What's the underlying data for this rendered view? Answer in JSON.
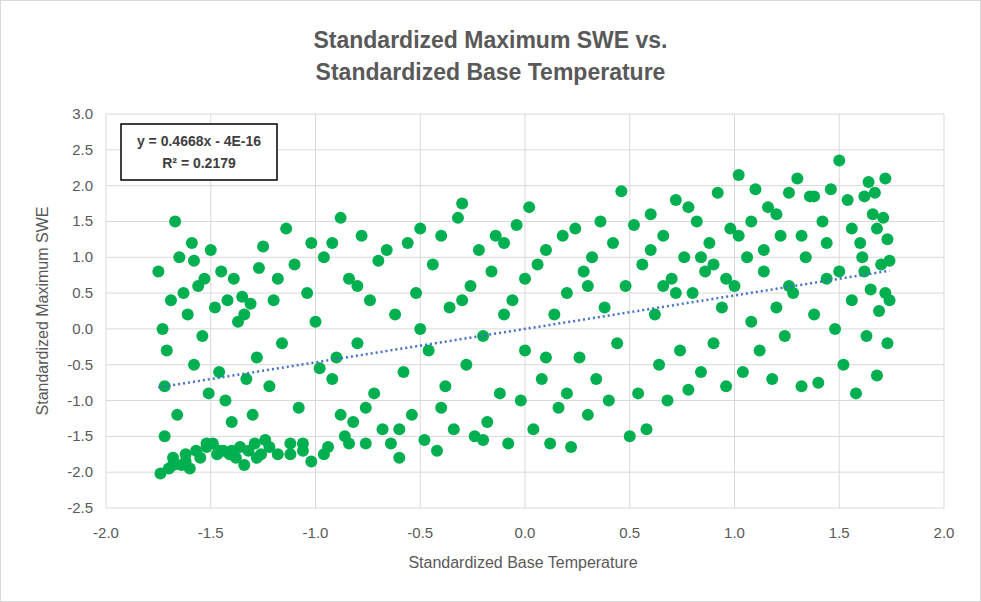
{
  "chart_data": {
    "type": "scatter",
    "title": "Standardized Maximum SWE vs. Standardized Base Temperature",
    "x_label": "Standardized Base Temperature",
    "y_label": "Standardized Maximum SWE",
    "annotations": [
      "y = 0.4668x - 4E-16",
      "R² = 0.2179"
    ],
    "trendline": {
      "slope": 0.4668,
      "intercept": -4e-16,
      "color": "#4472c4",
      "line_style": "dotted"
    },
    "color": "#00b050",
    "marker": "circle",
    "grid": true,
    "xlim": [
      -2,
      2
    ],
    "xticks": [
      {
        "value": -2,
        "label": "-2.0"
      },
      -1.5,
      {
        "value": -1,
        "label": "-1.0"
      },
      -0.5,
      {
        "value": 0,
        "label": "0.0"
      },
      0.5,
      {
        "value": 1,
        "label": "1.0"
      },
      1.5,
      {
        "value": 2,
        "label": "2.0"
      }
    ],
    "ylim": [
      -2.5,
      3
    ],
    "yticks": [
      -2.5,
      {
        "value": -2,
        "label": "-2.0"
      },
      -1.5,
      {
        "value": -1,
        "label": "-1.0"
      },
      -0.5,
      {
        "value": 0,
        "label": "0.0"
      },
      0.5,
      {
        "value": 1,
        "label": "1.0"
      },
      1.5,
      {
        "value": 2,
        "label": "2.0"
      },
      2.5,
      {
        "value": 3,
        "label": "3.0"
      }
    ],
    "x": [
      -1.75,
      -1.74,
      -1.73,
      -1.72,
      -1.71,
      -1.7,
      -1.69,
      -1.68,
      -1.67,
      -1.66,
      -1.65,
      -1.64,
      -1.63,
      -1.62,
      -1.61,
      -1.6,
      -1.59,
      -1.58,
      -1.57,
      -1.56,
      -1.55,
      -1.54,
      -1.53,
      -1.52,
      -1.51,
      -1.5,
      -1.49,
      -1.48,
      -1.47,
      -1.46,
      -1.45,
      -1.44,
      -1.43,
      -1.42,
      -1.41,
      -1.4,
      -1.39,
      -1.38,
      -1.37,
      -1.36,
      -1.35,
      -1.34,
      -1.33,
      -1.32,
      -1.31,
      -1.3,
      -1.29,
      -1.28,
      -1.27,
      -1.26,
      -1.25,
      -1.24,
      -1.22,
      -1.2,
      -1.18,
      -1.16,
      -1.14,
      -1.12,
      -1.1,
      -1.08,
      -1.06,
      -1.04,
      -1.02,
      -1.0,
      -0.98,
      -0.96,
      -0.94,
      -0.92,
      -0.9,
      -0.88,
      -0.86,
      -0.84,
      -0.82,
      -0.8,
      -0.78,
      -0.76,
      -0.74,
      -0.72,
      -0.7,
      -0.68,
      -0.66,
      -0.64,
      -0.62,
      -0.6,
      -0.58,
      -0.56,
      -0.54,
      -0.52,
      -0.5,
      -0.48,
      -0.46,
      -0.44,
      -0.42,
      -0.4,
      -0.38,
      -0.36,
      -0.34,
      -0.32,
      -0.3,
      -0.28,
      -0.26,
      -0.24,
      -0.22,
      -0.2,
      -0.18,
      -0.16,
      -0.14,
      -0.12,
      -0.1,
      -0.08,
      -0.06,
      -0.04,
      -0.02,
      0.0,
      0.02,
      0.04,
      0.06,
      0.08,
      0.1,
      0.12,
      0.14,
      0.16,
      0.18,
      0.2,
      0.22,
      0.24,
      0.26,
      0.28,
      0.3,
      0.32,
      0.34,
      0.36,
      0.38,
      0.4,
      0.42,
      0.44,
      0.46,
      0.48,
      0.5,
      0.52,
      0.54,
      0.56,
      0.58,
      0.6,
      0.62,
      0.64,
      0.66,
      0.68,
      0.7,
      0.72,
      0.74,
      0.76,
      0.78,
      0.8,
      0.82,
      0.84,
      0.86,
      0.88,
      0.9,
      0.92,
      0.94,
      0.96,
      0.98,
      1.0,
      1.02,
      1.04,
      1.06,
      1.08,
      1.1,
      1.12,
      1.14,
      1.16,
      1.18,
      1.2,
      1.22,
      1.24,
      1.26,
      1.28,
      1.3,
      1.32,
      1.34,
      1.36,
      1.38,
      1.4,
      1.42,
      1.44,
      1.46,
      1.48,
      1.5,
      1.52,
      1.54,
      1.56,
      1.58,
      1.6,
      1.62,
      1.64,
      1.66,
      1.68,
      1.7,
      1.72,
      1.73,
      1.74,
      1.74,
      1.73,
      1.71,
      1.69,
      1.67,
      1.65,
      1.63,
      1.61,
      -1.72,
      -1.68,
      -1.62,
      -1.58,
      -1.52,
      -1.46,
      -1.4,
      -1.34,
      -1.28,
      -1.22,
      -1.18,
      -1.12,
      -1.06,
      -1.02,
      -0.96,
      -0.92,
      -0.88,
      -0.84,
      -0.8,
      -0.76,
      0.6,
      0.66,
      0.72,
      0.78,
      0.84,
      0.9,
      0.96,
      1.02,
      1.08,
      1.14,
      1.2,
      1.26,
      1.32,
      1.38,
      1.44,
      1.5,
      1.56,
      1.62,
      1.68,
      1.72,
      -0.6,
      -0.5,
      -0.4,
      -0.3,
      -0.2,
      -0.1,
      0.0,
      0.1,
      0.2,
      0.3
    ],
    "values": [
      0.8,
      -2.02,
      0.0,
      -1.5,
      -0.3,
      -1.95,
      0.4,
      -1.8,
      1.5,
      -1.2,
      1.0,
      -1.9,
      0.5,
      -1.85,
      0.2,
      -1.95,
      1.2,
      -0.5,
      -1.7,
      0.6,
      -1.8,
      -0.1,
      0.7,
      -1.65,
      -0.9,
      1.1,
      -1.6,
      0.3,
      -1.75,
      -0.6,
      0.8,
      -1.7,
      -1.0,
      0.4,
      -1.75,
      -1.3,
      0.7,
      -1.8,
      0.1,
      -1.65,
      0.45,
      -1.9,
      -0.7,
      -1.7,
      0.35,
      -1.2,
      -1.6,
      -0.4,
      0.85,
      -1.75,
      1.15,
      -1.55,
      -0.8,
      0.4,
      -1.75,
      -0.2,
      1.4,
      -1.6,
      0.9,
      -1.1,
      -1.7,
      0.5,
      -1.85,
      0.1,
      -0.55,
      1.0,
      -1.65,
      1.2,
      -0.4,
      1.55,
      -1.5,
      0.7,
      -1.3,
      -0.2,
      1.3,
      -1.6,
      0.4,
      -0.9,
      0.95,
      -1.4,
      1.1,
      -1.6,
      0.2,
      -1.8,
      -0.6,
      1.2,
      -1.2,
      0.5,
      1.4,
      -1.55,
      -0.3,
      0.9,
      -1.7,
      1.3,
      -0.8,
      0.3,
      -1.4,
      1.55,
      1.75,
      -0.5,
      0.6,
      -1.5,
      1.1,
      -0.1,
      -1.3,
      0.8,
      1.3,
      -0.9,
      0.2,
      -1.6,
      0.4,
      1.45,
      -1.0,
      -0.3,
      1.7,
      -1.4,
      0.9,
      -0.7,
      1.1,
      -1.6,
      0.2,
      -1.1,
      1.3,
      0.5,
      -1.65,
      1.4,
      -0.4,
      0.8,
      -1.2,
      1.0,
      -0.7,
      1.5,
      0.3,
      -1.0,
      1.2,
      -0.2,
      1.92,
      0.6,
      -1.5,
      1.45,
      -0.9,
      0.9,
      -1.4,
      1.6,
      0.2,
      -0.5,
      1.3,
      -1.0,
      0.7,
      1.8,
      -0.3,
      1.0,
      -0.85,
      0.5,
      1.5,
      -0.6,
      0.8,
      1.2,
      -0.2,
      1.9,
      0.3,
      -0.8,
      1.4,
      0.6,
      2.15,
      -0.6,
      1.0,
      0.1,
      1.95,
      -0.3,
      0.8,
      1.7,
      -0.7,
      0.3,
      1.3,
      -0.1,
      1.9,
      0.5,
      2.1,
      -0.8,
      1.0,
      1.85,
      0.2,
      -0.75,
      1.5,
      0.7,
      1.95,
      0.0,
      2.35,
      -0.5,
      1.8,
      0.4,
      -0.9,
      1.2,
      0.8,
      2.05,
      1.6,
      -0.65,
      0.9,
      2.1,
      1.25,
      0.4,
      0.95,
      -0.2,
      1.55,
      0.25,
      1.9,
      0.55,
      -0.1,
      1.0,
      -0.8,
      -1.9,
      -1.75,
      0.95,
      -1.6,
      -1.7,
      -1.7,
      0.2,
      -1.8,
      -1.65,
      0.7,
      -1.75,
      -1.6,
      1.2,
      -1.75,
      -0.7,
      -1.2,
      -1.6,
      0.6,
      -1.1,
      1.1,
      0.6,
      0.5,
      1.7,
      1.0,
      0.9,
      0.7,
      1.3,
      1.5,
      1.1,
      1.6,
      0.6,
      1.3,
      1.85,
      1.2,
      0.8,
      1.4,
      1.85,
      1.4,
      0.5,
      -1.4,
      0.0,
      -1.1,
      0.4,
      -1.55,
      1.2,
      0.7,
      -0.4,
      -0.9,
      0.6
    ]
  }
}
